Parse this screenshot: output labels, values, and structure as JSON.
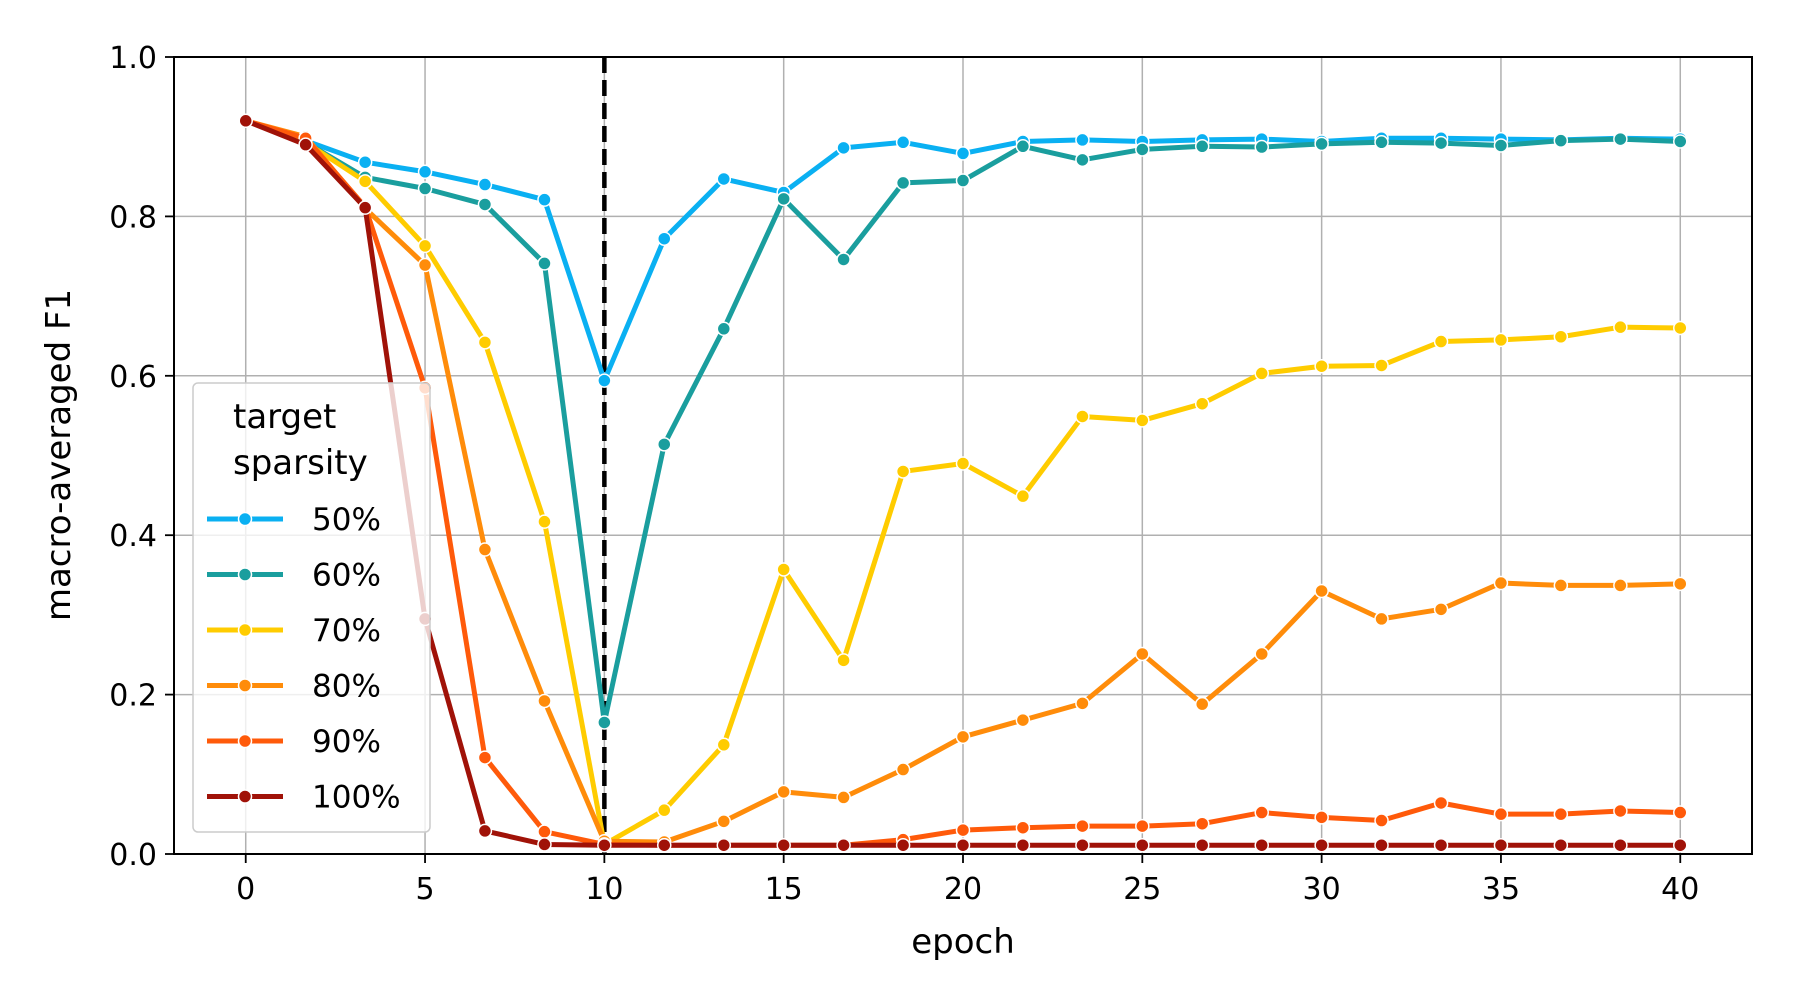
{
  "chart_data": {
    "type": "line",
    "title": "",
    "xlabel": "epoch",
    "ylabel": "macro-averaged F1",
    "xlim": [
      -2,
      42
    ],
    "ylim": [
      0,
      1
    ],
    "x_ticks": [
      0,
      5,
      10,
      15,
      20,
      25,
      30,
      35,
      40
    ],
    "y_ticks": [
      0.0,
      0.2,
      0.4,
      0.6,
      0.8,
      1.0
    ],
    "y_tick_labels": [
      "0.0",
      "0.2",
      "0.4",
      "0.6",
      "0.8",
      "1.0"
    ],
    "grid": true,
    "vertical_marker": {
      "x": 10,
      "style": "dashed",
      "color": "#000000"
    },
    "legend": {
      "title_lines": [
        "target",
        "sparsity"
      ],
      "placement": "center-left"
    },
    "x": [
      0,
      1.67,
      3.33,
      5,
      6.67,
      8.33,
      10,
      11.67,
      13.33,
      15,
      16.67,
      18.33,
      20,
      21.67,
      23.33,
      25,
      26.67,
      28.33,
      30,
      31.67,
      33.33,
      35,
      36.67,
      38.33,
      40
    ],
    "series": [
      {
        "name": "50%",
        "color": "#0ab0f2",
        "values": [
          0.92,
          0.895,
          0.868,
          0.856,
          0.84,
          0.821,
          0.594,
          0.772,
          0.847,
          0.83,
          0.886,
          0.893,
          0.879,
          0.894,
          0.896,
          0.894,
          0.896,
          0.897,
          0.894,
          0.898,
          0.898,
          0.897,
          0.896,
          0.898,
          0.897
        ]
      },
      {
        "name": "60%",
        "color": "#1a9e9e",
        "values": [
          0.92,
          0.893,
          0.849,
          0.835,
          0.815,
          0.741,
          0.165,
          0.514,
          0.659,
          0.822,
          0.746,
          0.842,
          0.845,
          0.888,
          0.871,
          0.884,
          0.888,
          0.887,
          0.891,
          0.893,
          0.892,
          0.889,
          0.895,
          0.897,
          0.894
        ]
      },
      {
        "name": "70%",
        "color": "#ffcc00",
        "values": [
          0.92,
          0.893,
          0.844,
          0.763,
          0.642,
          0.417,
          0.012,
          0.055,
          0.137,
          0.357,
          0.243,
          0.48,
          0.49,
          0.449,
          0.549,
          0.544,
          0.565,
          0.603,
          0.612,
          0.613,
          0.643,
          0.645,
          0.649,
          0.661,
          0.66
        ]
      },
      {
        "name": "80%",
        "color": "#ff8c0a",
        "values": [
          0.92,
          0.9,
          0.81,
          0.739,
          0.382,
          0.192,
          0.016,
          0.015,
          0.041,
          0.078,
          0.071,
          0.106,
          0.147,
          0.168,
          0.189,
          0.251,
          0.188,
          0.251,
          0.33,
          0.295,
          0.307,
          0.34,
          0.337,
          0.337,
          0.339
        ]
      },
      {
        "name": "90%",
        "color": "#ff5a0a",
        "values": [
          0.92,
          0.898,
          0.812,
          0.585,
          0.121,
          0.028,
          0.012,
          0.011,
          0.011,
          0.011,
          0.011,
          0.018,
          0.03,
          0.033,
          0.035,
          0.035,
          0.038,
          0.052,
          0.046,
          0.042,
          0.064,
          0.05,
          0.05,
          0.054,
          0.052
        ]
      },
      {
        "name": "100%",
        "color": "#a01208",
        "values": [
          0.92,
          0.89,
          0.811,
          0.295,
          0.029,
          0.012,
          0.011,
          0.011,
          0.011,
          0.011,
          0.011,
          0.011,
          0.011,
          0.011,
          0.011,
          0.011,
          0.011,
          0.011,
          0.011,
          0.011,
          0.011,
          0.011,
          0.011,
          0.011,
          0.011
        ]
      }
    ]
  }
}
